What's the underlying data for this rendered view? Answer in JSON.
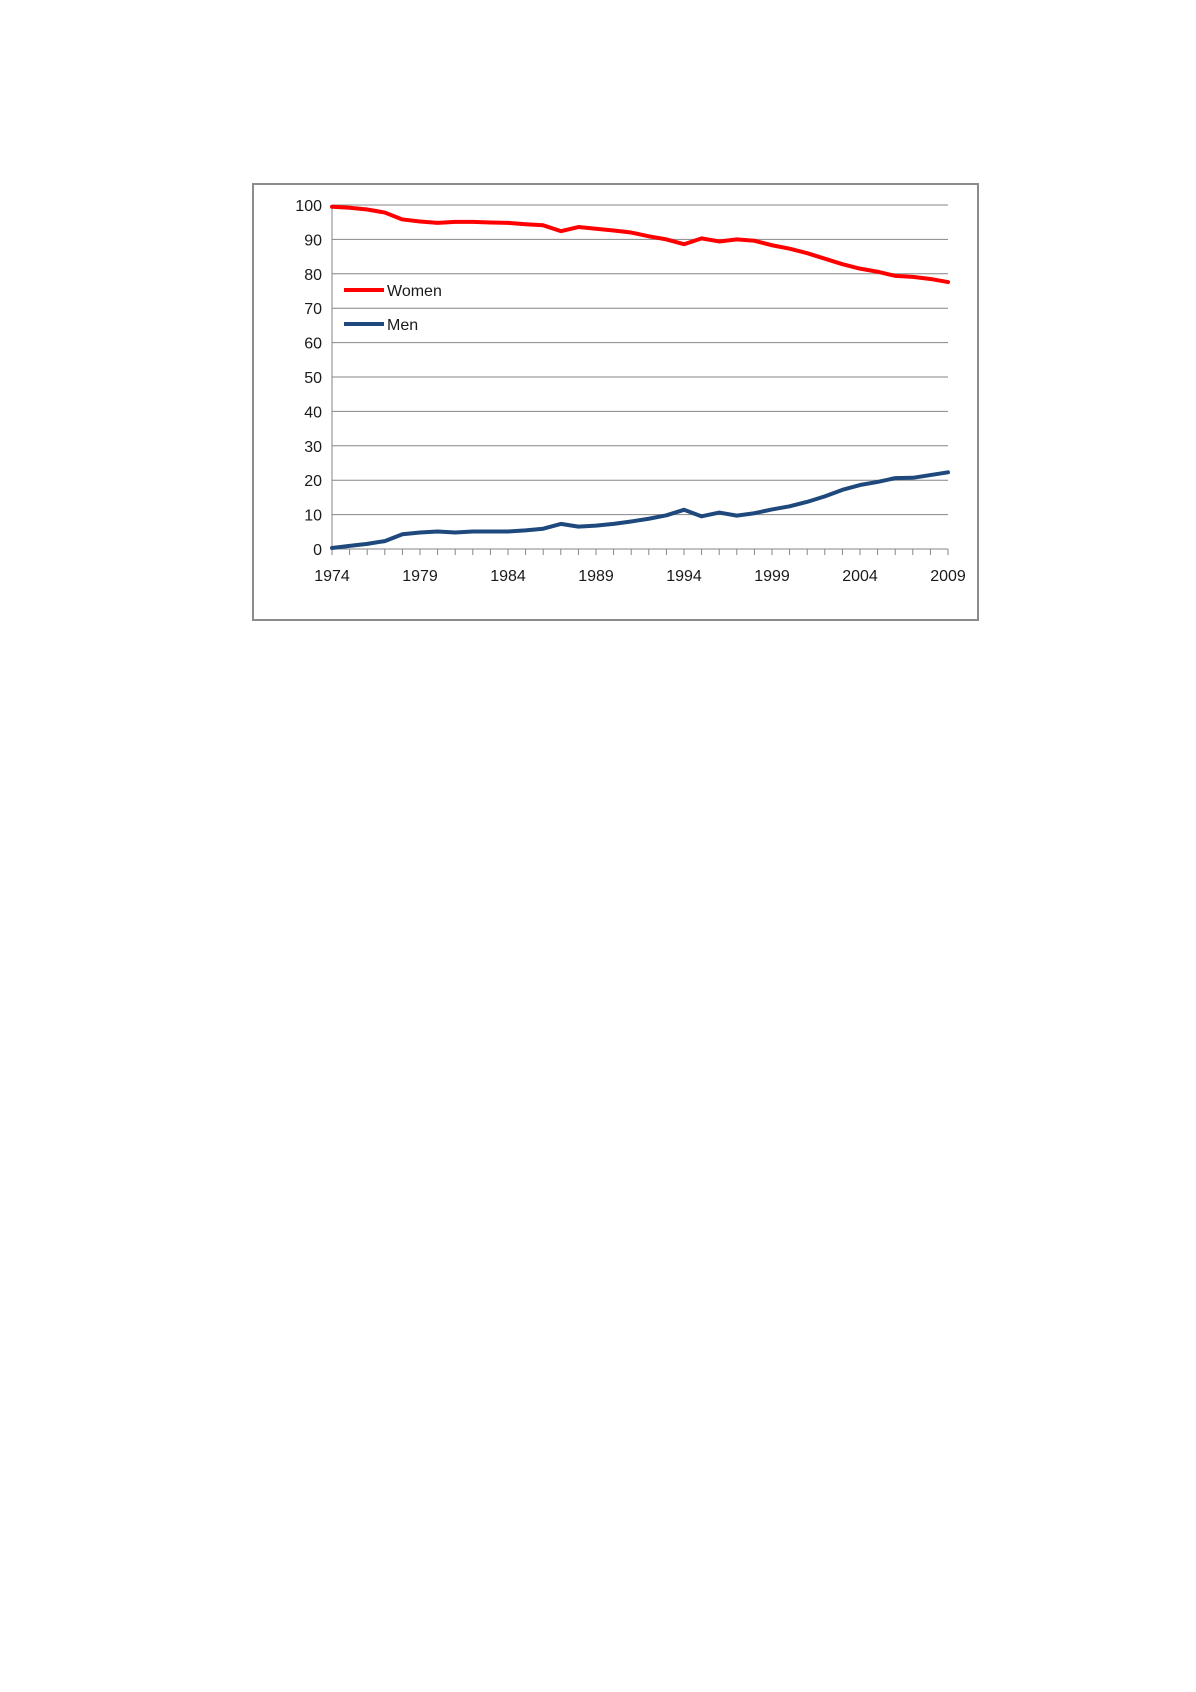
{
  "chart_data": {
    "type": "line",
    "title": "",
    "xlabel": "",
    "ylabel": "",
    "ylim": [
      0,
      100
    ],
    "yticks": [
      0,
      10,
      20,
      30,
      40,
      50,
      60,
      70,
      80,
      90,
      100
    ],
    "xlim": [
      1974,
      2009
    ],
    "xtick_labels": [
      "1974",
      "1979",
      "1984",
      "1989",
      "1994",
      "1999",
      "2004",
      "2009"
    ],
    "grid": "horizontal",
    "legend_position": "left",
    "x": [
      1974,
      1975,
      1976,
      1977,
      1978,
      1979,
      1980,
      1981,
      1982,
      1983,
      1984,
      1985,
      1986,
      1987,
      1988,
      1989,
      1990,
      1991,
      1992,
      1993,
      1994,
      1995,
      1996,
      1997,
      1998,
      1999,
      2000,
      2001,
      2002,
      2003,
      2004,
      2005,
      2006,
      2007,
      2008,
      2009
    ],
    "series": [
      {
        "name": "Women",
        "color": "#ff0000",
        "values": [
          99.5,
          99.2,
          98.7,
          97.8,
          95.8,
          95.2,
          94.8,
          95.1,
          95.1,
          94.9,
          94.8,
          94.4,
          94.1,
          92.4,
          93.6,
          93.1,
          92.6,
          92.0,
          90.9,
          90.0,
          88.6,
          90.3,
          89.4,
          90.0,
          89.6,
          88.3,
          87.3,
          86.0,
          84.4,
          82.8,
          81.5,
          80.6,
          79.4,
          79.1,
          78.5,
          77.6
        ]
      },
      {
        "name": "Men",
        "color": "#1f497d",
        "values": [
          0.3,
          0.9,
          1.5,
          2.3,
          4.3,
          4.8,
          5.1,
          4.8,
          5.1,
          5.1,
          5.1,
          5.4,
          5.9,
          7.3,
          6.5,
          6.8,
          7.3,
          8.0,
          8.8,
          9.8,
          11.4,
          9.5,
          10.6,
          9.7,
          10.4,
          11.5,
          12.4,
          13.7,
          15.3,
          17.2,
          18.6,
          19.5,
          20.6,
          20.7,
          21.5,
          22.3
        ]
      }
    ]
  }
}
